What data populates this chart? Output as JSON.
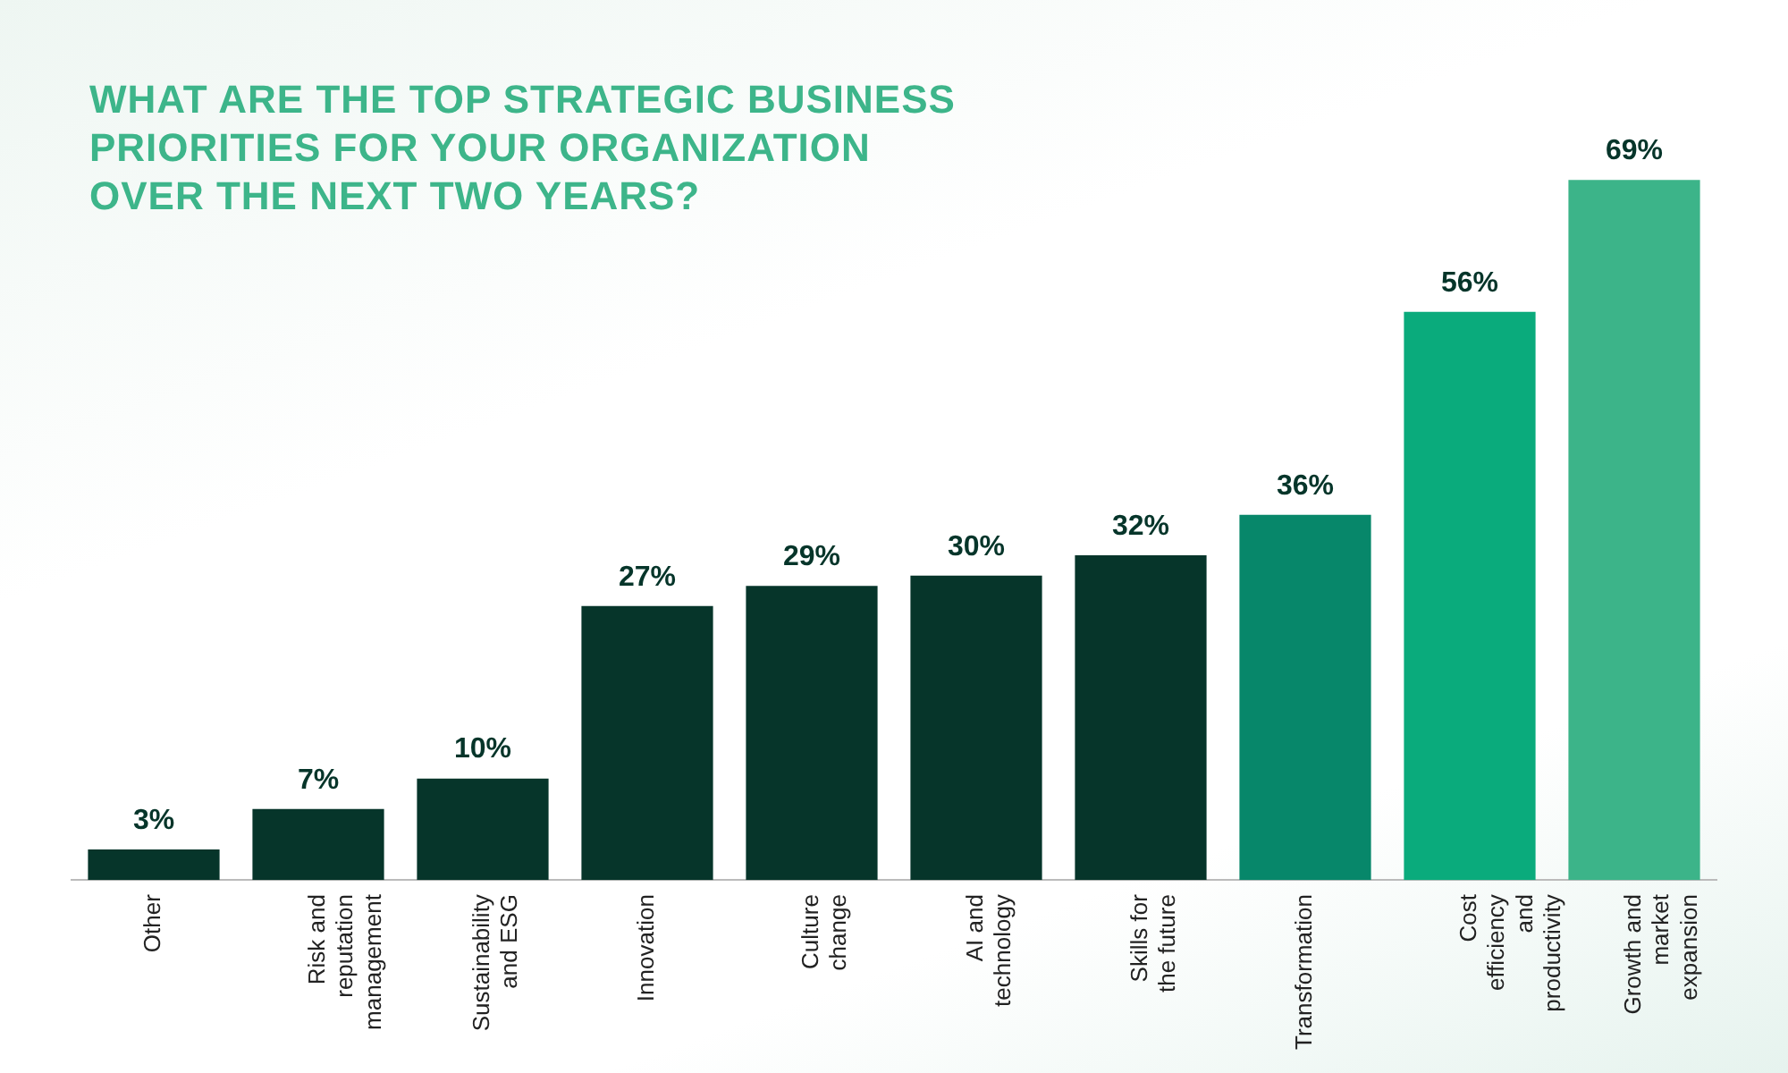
{
  "chart_data": {
    "type": "bar",
    "title": "WHAT ARE THE TOP STRATEGIC BUSINESS PRIORITIES FOR YOUR ORGANIZATION OVER THE NEXT TWO YEARS?",
    "categories": [
      "Other",
      "Risk and reputation management",
      "Sustainability and ESG",
      "Innovation",
      "Culture change",
      "AI and technology",
      "Skills for the future",
      "Transformation",
      "Cost efficiency and productivity",
      "Growth and market expansion"
    ],
    "values": [
      3,
      7,
      10,
      27,
      29,
      30,
      32,
      36,
      56,
      69
    ],
    "value_labels": [
      "3%",
      "7%",
      "10%",
      "27%",
      "29%",
      "30%",
      "32%",
      "36%",
      "56%",
      "69%"
    ],
    "colors": [
      "#06352a",
      "#06352a",
      "#06352a",
      "#06352a",
      "#06352a",
      "#06352a",
      "#06352a",
      "#07876a",
      "#0aab7c",
      "#3cb489"
    ],
    "tick_labels": "x",
    "grid": false,
    "legend": false
  }
}
